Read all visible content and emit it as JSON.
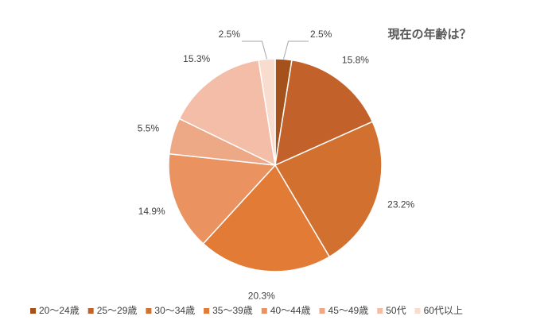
{
  "chart_data": {
    "type": "pie",
    "title": "現在の年齢は？",
    "categories": [
      "20～24歳",
      "25～29歳",
      "30～34歳",
      "35～39歳",
      "40～44歳",
      "45～49歳",
      "50代",
      "60代以上"
    ],
    "values": [
      2.5,
      15.8,
      23.2,
      20.3,
      14.9,
      5.5,
      15.3,
      2.5
    ],
    "value_labels": [
      "2.5%",
      "15.8%",
      "23.2%",
      "20.3%",
      "14.9%",
      "5.5%",
      "15.3%",
      "2.5%"
    ],
    "colors": [
      "#a4511c",
      "#c2622a",
      "#d2702f",
      "#e27b35",
      "#ea9260",
      "#eda886",
      "#f3bda7",
      "#f8dccd"
    ],
    "legend": "bottom"
  }
}
